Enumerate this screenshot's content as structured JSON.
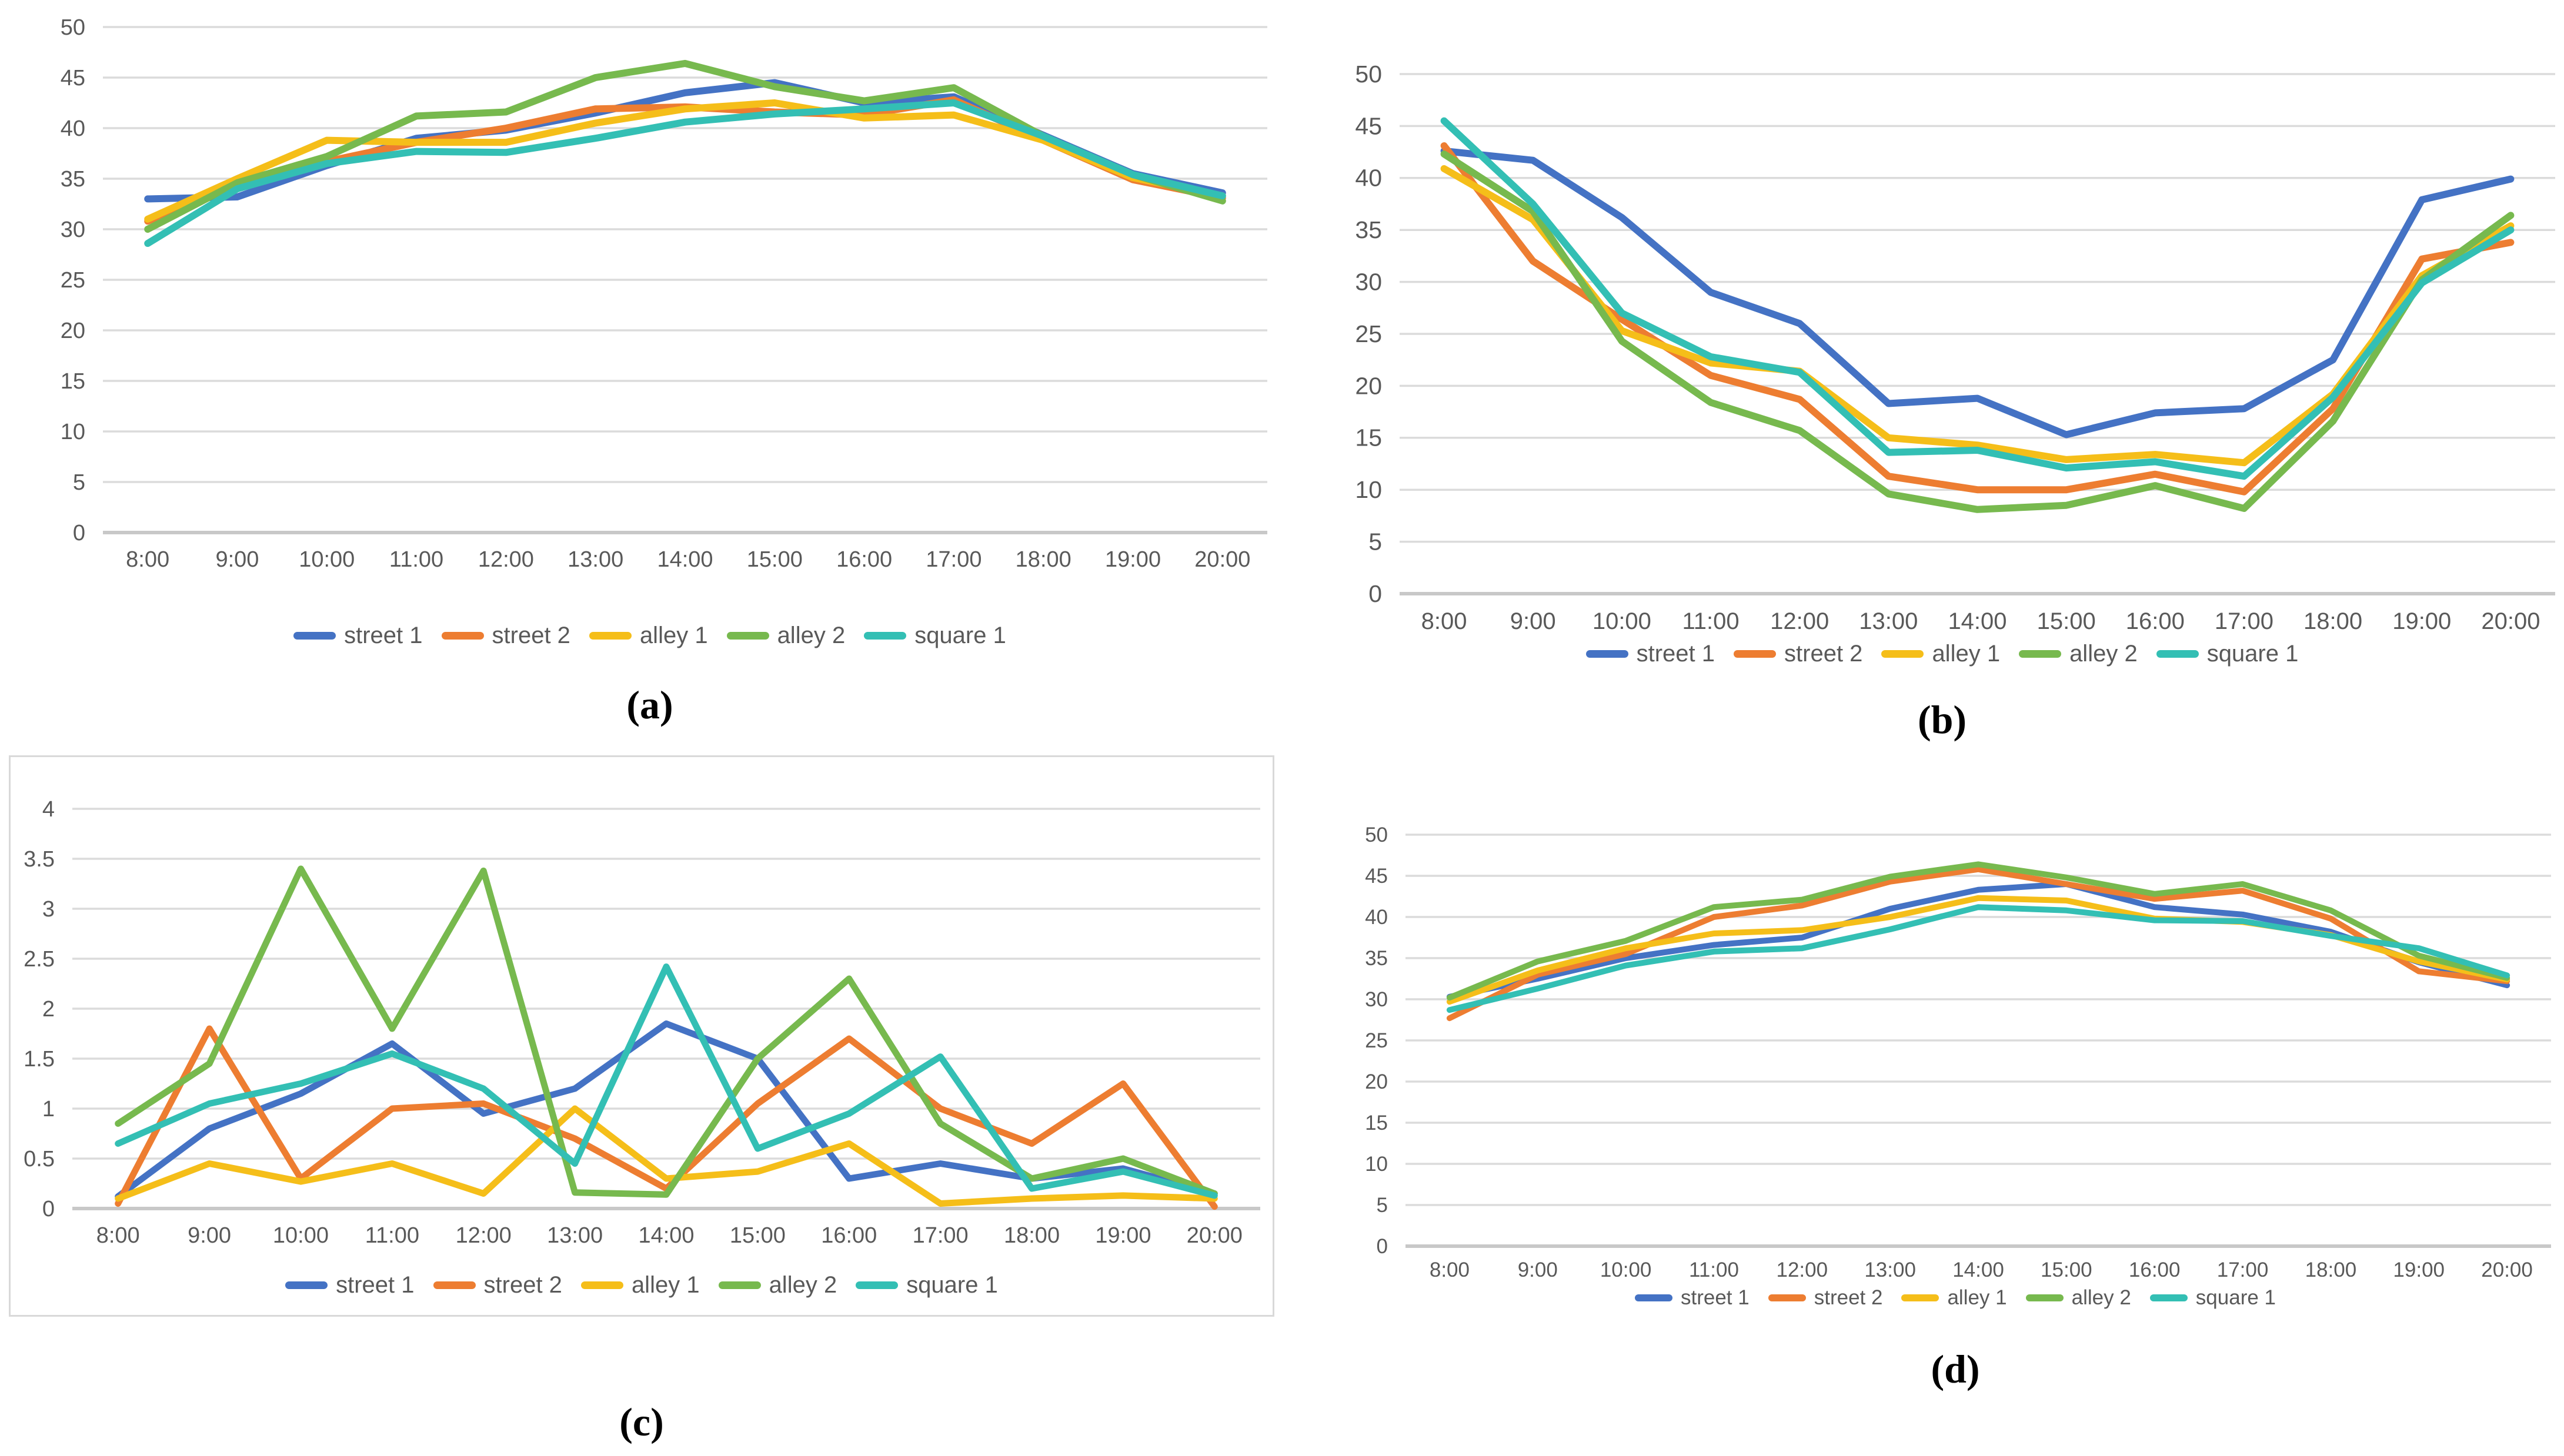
{
  "page": {
    "background": "#FFFFFF"
  },
  "colors": {
    "street 1": "#4472C4",
    "street 2": "#ED7D31",
    "alley 1": "#F5BE19",
    "alley 2": "#77B94E",
    "square 1": "#33BFB4",
    "gridline": "#DBDBDB",
    "axis_line": "#C8C8C8",
    "tick_label": "#595959",
    "caption": "#000000",
    "chart_border": "#D9D9D9"
  },
  "chart_data": [
    {
      "id": "a",
      "caption": "(a)",
      "type": "line",
      "grid": true,
      "legend_position": "bottom",
      "x_labels": [
        "8:00",
        "9:00",
        "10:00",
        "11:00",
        "12:00",
        "13:00",
        "14:00",
        "15:00",
        "16:00",
        "17:00",
        "18:00",
        "19:00",
        "20:00"
      ],
      "ylim": [
        0,
        50
      ],
      "ytick_step": 5,
      "series": [
        {
          "name": "street 1",
          "values": [
            33,
            33.2,
            36.3,
            39,
            39.8,
            41.5,
            43.5,
            44.5,
            42.5,
            43.1,
            39.3,
            35.5,
            33.6
          ]
        },
        {
          "name": "street 2",
          "values": [
            30.8,
            34.4,
            36.7,
            38.6,
            40,
            41.9,
            42.1,
            41.6,
            41.3,
            42.8,
            38.8,
            34.9,
            33.1
          ]
        },
        {
          "name": "alley 1",
          "values": [
            31,
            35,
            38.8,
            38.6,
            38.6,
            40.5,
            41.9,
            42.5,
            41,
            41.3,
            38.8,
            35.1,
            33.3
          ]
        },
        {
          "name": "alley 2",
          "values": [
            30,
            34.6,
            37.2,
            41.2,
            41.6,
            45,
            46.4,
            44.1,
            42.7,
            44,
            39.2,
            35.4,
            32.8
          ]
        },
        {
          "name": "square 1",
          "values": [
            28.6,
            34,
            36.5,
            37.7,
            37.6,
            39,
            40.6,
            41.4,
            41.9,
            42.5,
            39.2,
            35.4,
            33.3
          ]
        }
      ]
    },
    {
      "id": "b",
      "caption": "(b)",
      "type": "line",
      "grid": true,
      "legend_position": "bottom",
      "x_labels": [
        "8:00",
        "9:00",
        "10:00",
        "11:00",
        "12:00",
        "13:00",
        "14:00",
        "15:00",
        "16:00",
        "17:00",
        "18:00",
        "19:00",
        "20:00"
      ],
      "ylim": [
        0,
        50
      ],
      "ytick_step": 5,
      "series": [
        {
          "name": "street 1",
          "values": [
            42.6,
            41.7,
            36.2,
            29,
            26,
            18.3,
            18.8,
            15.3,
            17.4,
            17.8,
            22.5,
            37.9,
            39.9
          ]
        },
        {
          "name": "street 2",
          "values": [
            43.1,
            32,
            26.4,
            21,
            18.7,
            11.3,
            10,
            10,
            11.5,
            9.8,
            17.8,
            32.2,
            33.8
          ]
        },
        {
          "name": "alley 1",
          "values": [
            40.9,
            36,
            25.3,
            22.2,
            21.4,
            15,
            14.3,
            12.9,
            13.4,
            12.6,
            19.2,
            30.6,
            35.4
          ]
        },
        {
          "name": "alley 2",
          "values": [
            42.3,
            36.8,
            24.3,
            18.4,
            15.7,
            9.6,
            8.1,
            8.5,
            10.4,
            8.2,
            16.6,
            30.2,
            36.4
          ]
        },
        {
          "name": "square 1",
          "values": [
            45.5,
            37.5,
            27,
            22.8,
            21.3,
            13.6,
            13.8,
            12.1,
            12.7,
            11.3,
            18.9,
            29.9,
            35
          ]
        }
      ]
    },
    {
      "id": "c",
      "caption": "(c)",
      "type": "line",
      "grid": true,
      "bordered": true,
      "legend_position": "bottom",
      "x_labels": [
        "8:00",
        "9:00",
        "10:00",
        "11:00",
        "12:00",
        "13:00",
        "14:00",
        "15:00",
        "16:00",
        "17:00",
        "18:00",
        "19:00",
        "20:00"
      ],
      "ylim": [
        0,
        4
      ],
      "ytick_step": 0.5,
      "series": [
        {
          "name": "street 1",
          "values": [
            0.12,
            0.8,
            1.15,
            1.65,
            0.95,
            1.2,
            1.85,
            1.5,
            0.3,
            0.45,
            0.3,
            0.4,
            0.15
          ]
        },
        {
          "name": "street 2",
          "values": [
            0.05,
            1.8,
            0.3,
            1,
            1.05,
            0.7,
            0.2,
            1.05,
            1.7,
            1,
            0.65,
            1.25,
            0.02
          ]
        },
        {
          "name": "alley 1",
          "values": [
            0.1,
            0.45,
            0.27,
            0.45,
            0.15,
            1,
            0.3,
            0.37,
            0.65,
            0.05,
            0.1,
            0.13,
            0.1
          ]
        },
        {
          "name": "alley 2",
          "values": [
            0.85,
            1.45,
            3.4,
            1.8,
            3.38,
            0.16,
            0.14,
            1.5,
            2.3,
            0.85,
            0.3,
            0.5,
            0.15
          ]
        },
        {
          "name": "square 1",
          "values": [
            0.65,
            1.05,
            1.25,
            1.55,
            1.2,
            0.45,
            2.42,
            0.6,
            0.95,
            1.52,
            0.2,
            0.37,
            0.13
          ]
        }
      ]
    },
    {
      "id": "d",
      "caption": "(d)",
      "type": "line",
      "grid": true,
      "legend_position": "bottom",
      "x_labels": [
        "8:00",
        "9:00",
        "10:00",
        "11:00",
        "12:00",
        "13:00",
        "14:00",
        "15:00",
        "16:00",
        "17:00",
        "18:00",
        "19:00",
        "20:00"
      ],
      "ylim": [
        0,
        50
      ],
      "ytick_step": 5,
      "series": [
        {
          "name": "street 1",
          "values": [
            30.3,
            32.5,
            35,
            36.6,
            37.5,
            41,
            43.3,
            44,
            41.2,
            40.3,
            38.2,
            34.5,
            31.7
          ]
        },
        {
          "name": "street 2",
          "values": [
            27.7,
            33,
            35.5,
            40,
            41.4,
            44.3,
            45.8,
            44,
            42.2,
            43.2,
            39.8,
            33.4,
            32.2
          ]
        },
        {
          "name": "alley 1",
          "values": [
            29.7,
            33.5,
            36.2,
            38,
            38.4,
            40,
            42.3,
            42,
            39.8,
            39.4,
            37.8,
            34.6,
            32.4
          ]
        },
        {
          "name": "alley 2",
          "values": [
            30.2,
            34.6,
            37.1,
            41.2,
            42.1,
            44.9,
            46.4,
            44.8,
            42.8,
            44,
            40.8,
            35.3,
            32.6
          ]
        },
        {
          "name": "square 1",
          "values": [
            28.7,
            31.3,
            34.1,
            35.8,
            36.2,
            38.5,
            41.2,
            40.8,
            39.6,
            39.5,
            37.7,
            36.2,
            32.9
          ]
        }
      ]
    }
  ]
}
